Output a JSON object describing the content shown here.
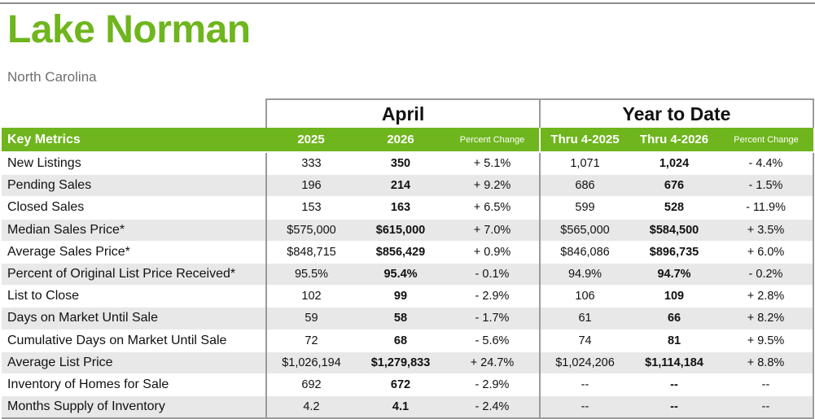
{
  "header": {
    "title": "Lake Norman",
    "subtitle": "North Carolina"
  },
  "colors": {
    "accent_green": "#6fb51d",
    "row_shade": "#e8e8e8",
    "subtitle_gray": "#6e6e6e"
  },
  "table": {
    "groups": {
      "april": "April",
      "ytd": "Year to Date"
    },
    "columns": {
      "metric": "Key Metrics",
      "a2025": "2025",
      "a2026": "2026",
      "apct": "Percent Change",
      "y2025": "Thru 4-2025",
      "y2026": "Thru 4-2026",
      "ypct": "Percent Change"
    },
    "rows": [
      {
        "metric": "New Listings",
        "a2025": "333",
        "a2026": "350",
        "apct": "+ 5.1%",
        "y2025": "1,071",
        "y2026": "1,024",
        "ypct": "- 4.4%"
      },
      {
        "metric": "Pending Sales",
        "a2025": "196",
        "a2026": "214",
        "apct": "+ 9.2%",
        "y2025": "686",
        "y2026": "676",
        "ypct": "- 1.5%"
      },
      {
        "metric": "Closed Sales",
        "a2025": "153",
        "a2026": "163",
        "apct": "+ 6.5%",
        "y2025": "599",
        "y2026": "528",
        "ypct": "- 11.9%"
      },
      {
        "metric": "Median Sales Price*",
        "a2025": "$575,000",
        "a2026": "$615,000",
        "apct": "+ 7.0%",
        "y2025": "$565,000",
        "y2026": "$584,500",
        "ypct": "+ 3.5%"
      },
      {
        "metric": "Average Sales Price*",
        "a2025": "$848,715",
        "a2026": "$856,429",
        "apct": "+ 0.9%",
        "y2025": "$846,086",
        "y2026": "$896,735",
        "ypct": "+ 6.0%"
      },
      {
        "metric": "Percent of Original List Price Received*",
        "a2025": "95.5%",
        "a2026": "95.4%",
        "apct": "- 0.1%",
        "y2025": "94.9%",
        "y2026": "94.7%",
        "ypct": "- 0.2%"
      },
      {
        "metric": "List to Close",
        "a2025": "102",
        "a2026": "99",
        "apct": "- 2.9%",
        "y2025": "106",
        "y2026": "109",
        "ypct": "+ 2.8%"
      },
      {
        "metric": "Days on Market Until Sale",
        "a2025": "59",
        "a2026": "58",
        "apct": "- 1.7%",
        "y2025": "61",
        "y2026": "66",
        "ypct": "+ 8.2%"
      },
      {
        "metric": "Cumulative Days on Market Until Sale",
        "a2025": "72",
        "a2026": "68",
        "apct": "- 5.6%",
        "y2025": "74",
        "y2026": "81",
        "ypct": "+ 9.5%"
      },
      {
        "metric": "Average List Price",
        "a2025": "$1,026,194",
        "a2026": "$1,279,833",
        "apct": "+ 24.7%",
        "y2025": "$1,024,206",
        "y2026": "$1,114,184",
        "ypct": "+ 8.8%"
      },
      {
        "metric": "Inventory of Homes for Sale",
        "a2025": "692",
        "a2026": "672",
        "apct": "- 2.9%",
        "y2025": "--",
        "y2026": "--",
        "ypct": "--"
      },
      {
        "metric": "Months Supply of Inventory",
        "a2025": "4.2",
        "a2026": "4.1",
        "apct": "- 2.4%",
        "y2025": "--",
        "y2026": "--",
        "ypct": "--"
      }
    ]
  }
}
